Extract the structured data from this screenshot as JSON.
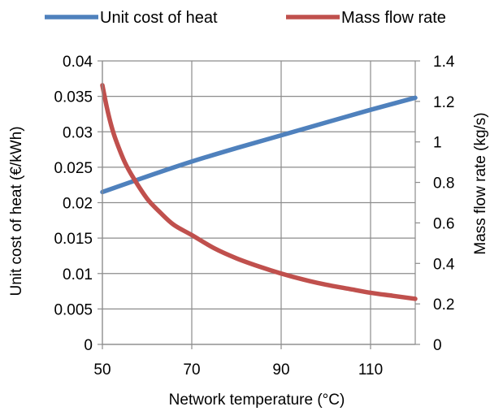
{
  "chart_data": {
    "type": "line",
    "title": "",
    "xlabel": "Network temperature (°C)",
    "ylabel_left": "Unit cost of heat (€/kWh)",
    "ylabel_right": "Mass flow rate (kg/s)",
    "xlim": [
      50,
      120
    ],
    "ylim_left": [
      0,
      0.04
    ],
    "ylim_right": [
      0,
      1.4
    ],
    "x_ticks": [
      50,
      70,
      90,
      110
    ],
    "y_left_ticks": [
      "0",
      "0.005",
      "0.01",
      "0.015",
      "0.02",
      "0.025",
      "0.03",
      "0.035",
      "0.04"
    ],
    "y_right_ticks": [
      "0",
      "0.2",
      "0.4",
      "0.6",
      "0.8",
      "1",
      "1.2",
      "1.4"
    ],
    "grid": true,
    "legend_position": "top",
    "series": [
      {
        "name": "Unit cost of heat",
        "axis": "left",
        "color": "#4f81bd",
        "x": [
          50,
          60,
          70,
          80,
          90,
          100,
          110,
          120
        ],
        "y": [
          0.0215,
          0.0237,
          0.0258,
          0.0277,
          0.0295,
          0.0313,
          0.0331,
          0.0348
        ]
      },
      {
        "name": "Mass flow rate",
        "axis": "right",
        "color": "#c0504d",
        "x": [
          50,
          51,
          52,
          53,
          55,
          57,
          60,
          63,
          66,
          70,
          75,
          80,
          85,
          90,
          95,
          100,
          105,
          110,
          115,
          120
        ],
        "y": [
          1.28,
          1.17,
          1.08,
          1.01,
          0.9,
          0.82,
          0.72,
          0.65,
          0.59,
          0.54,
          0.475,
          0.425,
          0.385,
          0.35,
          0.32,
          0.295,
          0.275,
          0.255,
          0.24,
          0.225
        ]
      }
    ]
  }
}
